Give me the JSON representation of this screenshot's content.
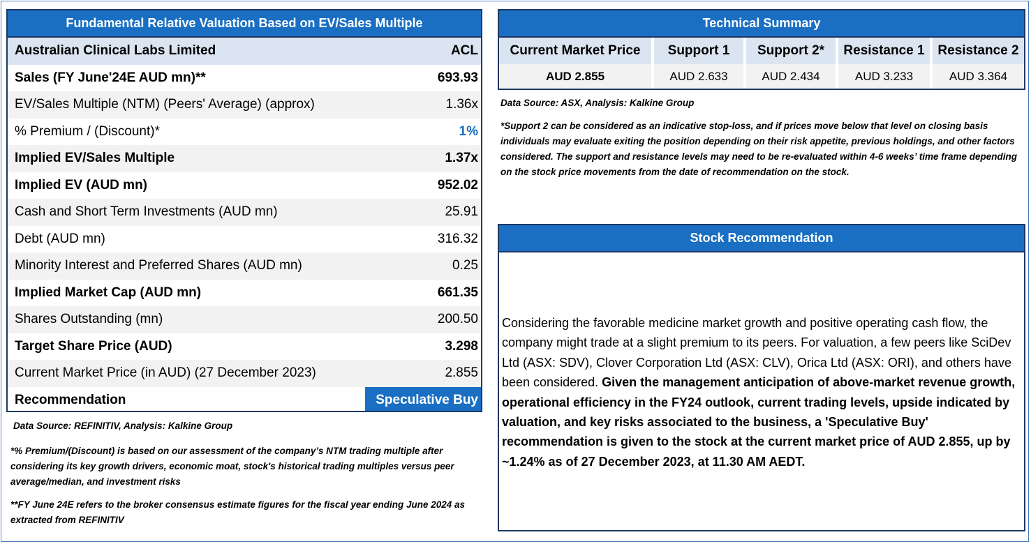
{
  "valuation": {
    "title": "Fundamental Relative Valuation Based on EV/Sales Multiple",
    "company": "Australian Clinical Labs Limited",
    "ticker": "ACL",
    "rows": [
      {
        "label": "Sales (FY June'24E AUD mn)**",
        "value": "693.93"
      },
      {
        "label": "EV/Sales Multiple (NTM)  (Peers' Average) (approx)",
        "value": "1.36x"
      },
      {
        "label": "% Premium / (Discount)*",
        "value": "1%"
      },
      {
        "label": "Implied EV/Sales Multiple",
        "value": "1.37x"
      },
      {
        "label": "Implied EV (AUD mn)",
        "value": "952.02"
      },
      {
        "label": "Cash and Short Term Investments (AUD mn)",
        "value": "25.91"
      },
      {
        "label": "Debt (AUD mn)",
        "value": "316.32"
      },
      {
        "label": "Minority Interest and Preferred Shares (AUD mn)",
        "value": "0.25"
      },
      {
        "label": "Implied Market Cap (AUD mn)",
        "value": "661.35"
      },
      {
        "label": "Shares Outstanding (mn)",
        "value": "200.50"
      },
      {
        "label": "Target Share Price (AUD)",
        "value": "3.298"
      },
      {
        "label": "Current Market Price (in AUD) (27 December 2023)",
        "value": "2.855"
      },
      {
        "label": "Recommendation",
        "value": "Speculative Buy"
      }
    ],
    "source": "Data Source: REFINITIV, Analysis: Kalkine Group",
    "note1": "*% Premium/(Discount) is based on our assessment of the company’s NTM trading multiple after considering its key growth drivers, economic moat, stock's historical trading multiples versus peer average/median, and investment risks",
    "note2": "**FY June 24E refers to the broker consensus estimate figures for the fiscal year ending June 2024 as extracted from REFINITIV"
  },
  "technical": {
    "title": "Technical Summary",
    "headers": [
      "Current Market Price",
      "Support 1",
      "Support 2*",
      "Resistance 1",
      "Resistance 2"
    ],
    "values": [
      "AUD 2.855",
      "AUD 2.633",
      "AUD 2.434",
      "AUD 3.233",
      "AUD 3.364"
    ],
    "source": "Data Source: ASX, Analysis: Kalkine Group",
    "note": "*Support 2 can be considered as an indicative stop-loss, and if prices move below that level on closing basis individuals may evaluate exiting the position depending on their risk appetite, previous holdings, and other factors considered. The support and resistance levels may need to be re-evaluated within 4-6 weeks’ time frame depending on the stock price movements from the date of recommendation on the stock."
  },
  "recommendation": {
    "title": "Stock Recommendation",
    "text_normal": "Considering the favorable medicine market growth and positive operating cash flow, the company might trade at a slight premium to its peers. For valuation, a few peers like SciDev Ltd (ASX: SDV), Clover Corporation Ltd (ASX: CLV), Orica Ltd (ASX: ORI), and others have been considered. ",
    "text_bold": "Given the management anticipation of above-market revenue growth, operational efficiency in the FY24 outlook, current trading levels, upside indicated by valuation, and key risks associated to the business, a 'Speculative Buy' recommendation is given to the stock at the current market price of AUD 2.855, up by ~1.24% as of 27 December 2023, at 11.30 AM AEDT."
  },
  "colors": {
    "header_blue": "#1a6fc2",
    "header_row_bg": "#dbe5f1",
    "stripe_gray": "#f2f2f2",
    "border_navy": "#1f3864"
  }
}
